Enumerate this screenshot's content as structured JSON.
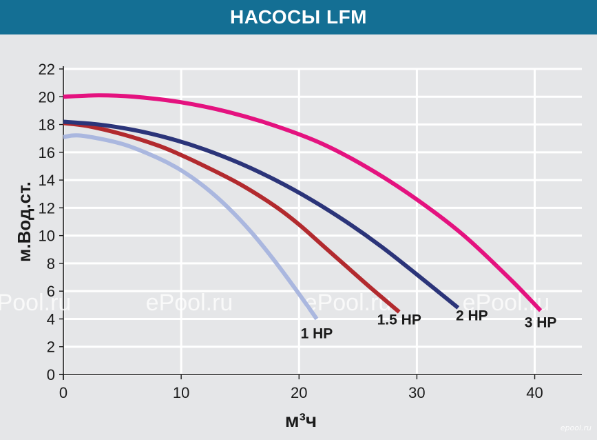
{
  "title": "НАСОСЫ LFM",
  "chart_data": {
    "type": "line",
    "xlabel": "м³ч",
    "ylabel": "м.Вод.ст.",
    "xlim": [
      0,
      44
    ],
    "ylim": [
      0,
      22
    ],
    "x_ticks": [
      0,
      10,
      20,
      30,
      40
    ],
    "y_ticks": [
      0,
      2,
      4,
      6,
      8,
      10,
      12,
      14,
      16,
      18,
      20,
      22
    ],
    "grid": true,
    "series": [
      {
        "name": "1 HP",
        "color": "#aab7df",
        "x": [
          0,
          1.5,
          5,
          8,
          10,
          12,
          14,
          16,
          18,
          20,
          21.5
        ],
        "y": [
          17.1,
          17.2,
          16.6,
          15.6,
          14.7,
          13.5,
          12.0,
          10.2,
          8.1,
          5.8,
          4.0
        ]
      },
      {
        "name": "1.5 HP",
        "color": "#b22a2e",
        "x": [
          0,
          2,
          5,
          8,
          10,
          12,
          15,
          18,
          20,
          22,
          24,
          26,
          28.5
        ],
        "y": [
          18.1,
          17.9,
          17.3,
          16.5,
          15.8,
          15.0,
          13.7,
          12.1,
          10.8,
          9.3,
          7.8,
          6.3,
          4.5
        ]
      },
      {
        "name": "2 HP",
        "color": "#2b3479",
        "x": [
          0,
          3,
          6,
          9,
          12,
          15,
          18,
          21,
          24,
          27,
          30,
          33.5
        ],
        "y": [
          18.2,
          18.0,
          17.6,
          17.0,
          16.2,
          15.2,
          14.0,
          12.6,
          11.0,
          9.2,
          7.2,
          4.8
        ]
      },
      {
        "name": "3 HP",
        "color": "#e4127f",
        "x": [
          0,
          3,
          6,
          10,
          14,
          18,
          22,
          26,
          30,
          34,
          38,
          40.5
        ],
        "y": [
          20.0,
          20.1,
          20.0,
          19.6,
          18.9,
          17.9,
          16.6,
          14.8,
          12.6,
          10.0,
          6.8,
          4.6
        ]
      }
    ],
    "watermarks": [
      "ePool.ru",
      "ePool.ru",
      "ePool.ru",
      "ePool.ru",
      "ePool.ru"
    ],
    "corner_mark": "epool.ru"
  }
}
